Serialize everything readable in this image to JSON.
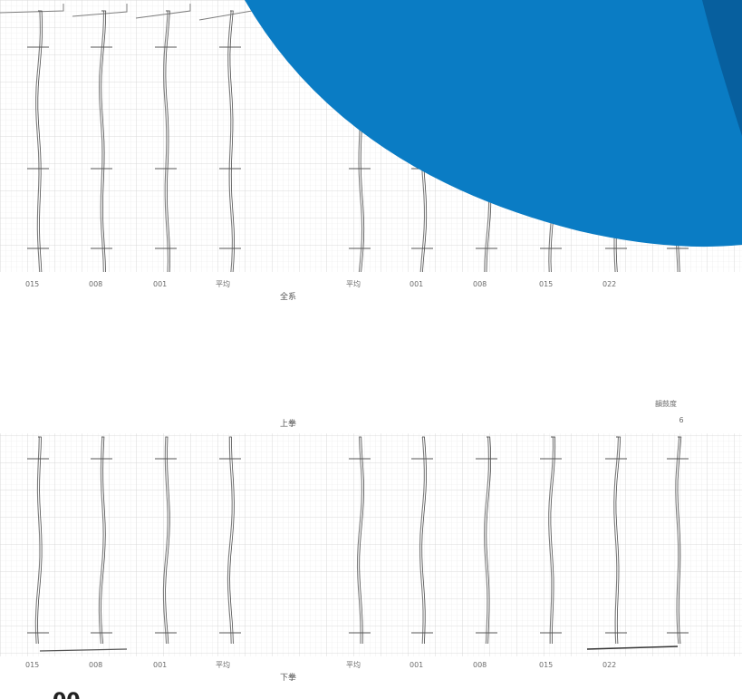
{
  "colors": {
    "grid_minor": "#e7e7e7",
    "grid_major": "#cfcfcf",
    "trace": "#7d7d7d",
    "trace_dark": "#3a3a3a",
    "label": "#6b6b6b",
    "accent_blue": "#0a7cc4",
    "accent_blue_dark": "#075f9e",
    "paper": "#ffffff"
  },
  "top_panel": {
    "header_text": "",
    "caption": "全系",
    "tick_labels": [
      "015",
      "008",
      "001",
      "平均",
      "平均",
      "001",
      "008",
      "015",
      "022"
    ]
  },
  "bottom_panel": {
    "top_caption": "上拳",
    "bottom_caption": "下拳",
    "corner_label": "韻鼓度",
    "corner_sub": "6",
    "tick_labels": [
      "015",
      "008",
      "001",
      "平均",
      "平均",
      "001",
      "008",
      "015",
      "022"
    ]
  },
  "page_number_partial": "00"
}
